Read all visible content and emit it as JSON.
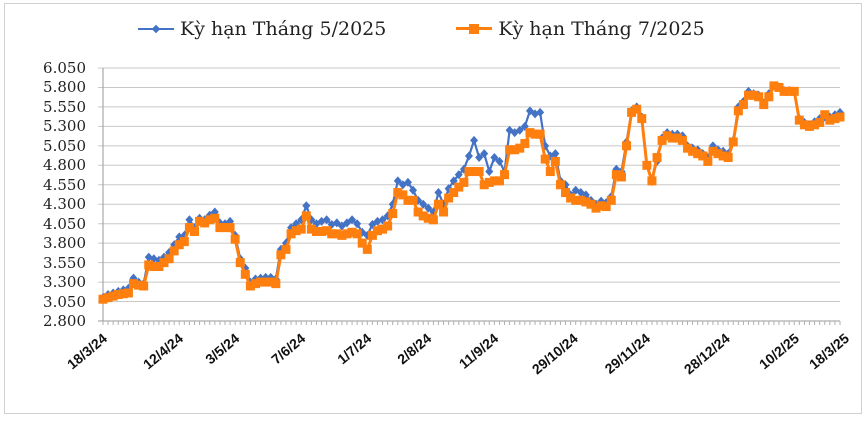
{
  "chart_data": {
    "type": "line",
    "title": "",
    "xlabel": "",
    "ylabel": "",
    "ylim": [
      2.8,
      6.05
    ],
    "y_ticks": [
      "6.050",
      "5.800",
      "5.550",
      "5.300",
      "5.050",
      "4.800",
      "4.550",
      "4.300",
      "4.050",
      "3.800",
      "3.550",
      "3.300",
      "3.050",
      "2.800"
    ],
    "x_tick_labels": [
      "18/3/24",
      "12/4/24",
      "3/5/24",
      "7/6/24",
      "1/7/24",
      "2/8/24",
      "11/9/24",
      "29/10/24",
      "29/11/24",
      "28/12/24",
      "10/2/25",
      "18/3/25"
    ],
    "grid": true,
    "legend_position": "top",
    "series": [
      {
        "name": "Kỳ hạn Tháng 5/2025",
        "color": "#4472C4",
        "marker": "diamond",
        "values": [
          3.1,
          3.14,
          3.16,
          3.18,
          3.2,
          3.22,
          3.35,
          3.3,
          3.28,
          3.62,
          3.6,
          3.58,
          3.62,
          3.68,
          3.78,
          3.88,
          3.9,
          4.1,
          4.0,
          4.12,
          4.1,
          4.16,
          4.2,
          4.06,
          4.05,
          4.08,
          3.9,
          3.6,
          3.48,
          3.3,
          3.34,
          3.35,
          3.36,
          3.36,
          3.34,
          3.72,
          3.8,
          4.0,
          4.05,
          4.1,
          4.28,
          4.1,
          4.05,
          4.08,
          4.1,
          4.04,
          4.06,
          4.02,
          4.06,
          4.1,
          4.05,
          3.94,
          3.9,
          4.04,
          4.08,
          4.1,
          4.15,
          4.3,
          4.6,
          4.55,
          4.58,
          4.48,
          4.35,
          4.3,
          4.25,
          4.2,
          4.45,
          4.3,
          4.5,
          4.6,
          4.68,
          4.75,
          4.92,
          5.12,
          4.9,
          4.95,
          4.72,
          4.9,
          4.85,
          4.72,
          5.25,
          5.22,
          5.25,
          5.3,
          5.5,
          5.46,
          5.48,
          5.05,
          4.92,
          4.95,
          4.6,
          4.55,
          4.42,
          4.48,
          4.45,
          4.42,
          4.35,
          4.3,
          4.34,
          4.32,
          4.4,
          4.75,
          4.72,
          5.1,
          5.5,
          5.55,
          5.42,
          4.8,
          4.62,
          4.85,
          5.15,
          5.22,
          5.2,
          5.2,
          5.18,
          5.05,
          5.02,
          5.0,
          4.95,
          4.9,
          5.05,
          5.0,
          4.98,
          4.95,
          5.12,
          5.55,
          5.62,
          5.75,
          5.72,
          5.7,
          5.6,
          5.72,
          5.82,
          5.8,
          5.76,
          5.76,
          5.75,
          5.4,
          5.35,
          5.32,
          5.36,
          5.4,
          5.42,
          5.42,
          5.45,
          5.48
        ]
      },
      {
        "name": "Kỳ hạn Tháng 7/2025",
        "color": "#FF7F0E",
        "marker": "square",
        "values": [
          3.08,
          3.1,
          3.12,
          3.14,
          3.15,
          3.16,
          3.28,
          3.26,
          3.25,
          3.52,
          3.5,
          3.5,
          3.55,
          3.6,
          3.7,
          3.78,
          3.82,
          4.0,
          3.95,
          4.08,
          4.06,
          4.1,
          4.12,
          4.0,
          4.0,
          4.0,
          3.85,
          3.55,
          3.4,
          3.25,
          3.28,
          3.3,
          3.3,
          3.3,
          3.28,
          3.65,
          3.72,
          3.92,
          3.96,
          3.98,
          4.15,
          3.98,
          3.95,
          3.95,
          3.96,
          3.92,
          3.92,
          3.9,
          3.92,
          3.94,
          3.92,
          3.8,
          3.72,
          3.9,
          3.96,
          3.98,
          4.02,
          4.18,
          4.45,
          4.42,
          4.35,
          4.35,
          4.2,
          4.15,
          4.12,
          4.1,
          4.3,
          4.2,
          4.38,
          4.45,
          4.52,
          4.58,
          4.72,
          4.72,
          4.72,
          4.55,
          4.58,
          4.6,
          4.6,
          4.68,
          5.0,
          5.0,
          5.02,
          5.08,
          5.22,
          5.2,
          5.2,
          4.88,
          4.72,
          4.85,
          4.55,
          4.45,
          4.38,
          4.35,
          4.35,
          4.33,
          4.3,
          4.25,
          4.28,
          4.27,
          4.35,
          4.68,
          4.65,
          5.05,
          5.48,
          5.52,
          5.4,
          4.8,
          4.6,
          4.9,
          5.12,
          5.18,
          5.15,
          5.15,
          5.12,
          5.02,
          4.98,
          4.95,
          4.92,
          4.85,
          4.98,
          4.95,
          4.92,
          4.9,
          5.1,
          5.5,
          5.58,
          5.7,
          5.7,
          5.68,
          5.58,
          5.68,
          5.82,
          5.8,
          5.75,
          5.75,
          5.75,
          5.38,
          5.32,
          5.3,
          5.32,
          5.35,
          5.45,
          5.38,
          5.4,
          5.42
        ]
      }
    ]
  },
  "legend": {
    "items": [
      {
        "label": "Kỳ hạn Tháng 5/2025",
        "color": "#4472C4"
      },
      {
        "label": "Kỳ hạn Tháng 7/2025",
        "color": "#FF7F0E"
      }
    ]
  }
}
